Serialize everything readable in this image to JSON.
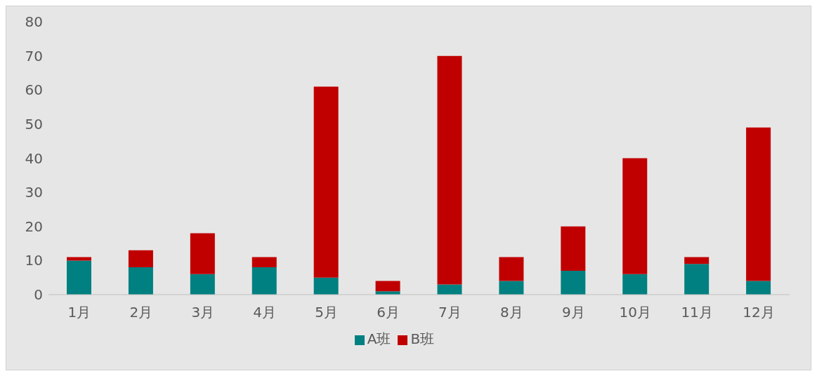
{
  "chart_data": {
    "type": "bar",
    "stacked": true,
    "categories": [
      "1月",
      "2月",
      "3月",
      "4月",
      "5月",
      "6月",
      "7月",
      "8月",
      "9月",
      "10月",
      "11月",
      "12月"
    ],
    "series": [
      {
        "name": "A班",
        "color": "#008080",
        "values": [
          10,
          8,
          6,
          8,
          5,
          1,
          3,
          4,
          7,
          6,
          9,
          4
        ]
      },
      {
        "name": "B班",
        "color": "#c00000",
        "values": [
          1,
          5,
          12,
          3,
          56,
          3,
          67,
          7,
          13,
          34,
          2,
          45
        ]
      }
    ],
    "ylim": [
      0,
      80
    ],
    "yticks": [
      0,
      10,
      20,
      30,
      40,
      50,
      60,
      70,
      80
    ],
    "grid": false,
    "legend": "bottom"
  }
}
